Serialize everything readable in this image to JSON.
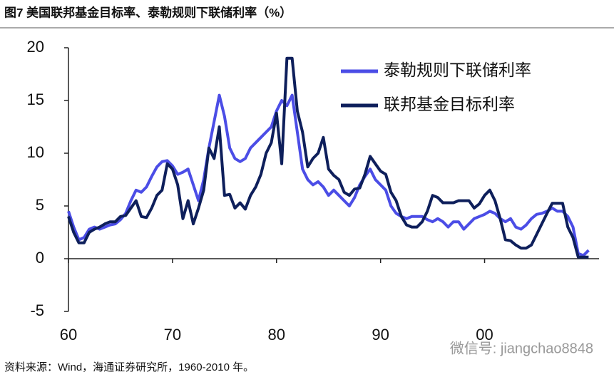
{
  "chart_data": {
    "type": "line",
    "title": "图7  美国联邦基金目标率、泰勒规则下联储利率（%）",
    "source": "资料来源：Wind，海通证券研究所，1960-2010 年。",
    "watermark": "微信号: jiangchao8848",
    "x": [
      1960,
      1960.5,
      1961,
      1961.5,
      1962,
      1962.5,
      1963,
      1963.5,
      1964,
      1964.5,
      1965,
      1965.5,
      1966,
      1966.5,
      1967,
      1967.5,
      1968,
      1968.5,
      1969,
      1969.5,
      1970,
      1970.5,
      1971,
      1971.5,
      1972,
      1972.5,
      1973,
      1973.5,
      1974,
      1974.5,
      1975,
      1975.5,
      1976,
      1976.5,
      1977,
      1977.5,
      1978,
      1978.5,
      1979,
      1979.5,
      1980,
      1980.5,
      1981,
      1981.5,
      1982,
      1982.5,
      1983,
      1983.5,
      1984,
      1984.5,
      1985,
      1985.5,
      1986,
      1986.5,
      1987,
      1987.5,
      1988,
      1988.5,
      1989,
      1989.5,
      1990,
      1990.5,
      1991,
      1991.5,
      1992,
      1992.5,
      1993,
      1993.5,
      1994,
      1994.5,
      1995,
      1995.5,
      1996,
      1996.5,
      1997,
      1997.5,
      1998,
      1998.5,
      1999,
      1999.5,
      2000,
      2000.5,
      2001,
      2001.5,
      2002,
      2002.5,
      2003,
      2003.5,
      2004,
      2004.5,
      2005,
      2005.5,
      2006,
      2006.5,
      2007,
      2007.5,
      2008,
      2008.5,
      2009,
      2009.5,
      2010
    ],
    "series": [
      {
        "name": "泰勒规则下联储利率",
        "color": "#4b4de6",
        "values": [
          4.5,
          3.0,
          1.8,
          2.0,
          2.8,
          3.0,
          2.8,
          3.0,
          3.2,
          3.3,
          3.7,
          4.3,
          5.5,
          6.5,
          6.3,
          6.8,
          7.8,
          8.7,
          9.2,
          9.3,
          8.8,
          8.0,
          8.2,
          8.5,
          7.0,
          5.5,
          7.5,
          10.5,
          13.0,
          15.5,
          13.5,
          10.5,
          9.5,
          9.2,
          9.5,
          10.5,
          11.0,
          11.5,
          12.0,
          12.5,
          14.0,
          15.0,
          14.5,
          15.5,
          12.0,
          8.5,
          7.5,
          7.0,
          7.3,
          6.8,
          6.0,
          6.5,
          6.0,
          5.5,
          5.0,
          5.8,
          7.0,
          7.8,
          8.5,
          7.5,
          7.0,
          6.5,
          5.0,
          4.3,
          4.0,
          3.8,
          4.0,
          4.0,
          4.0,
          3.7,
          3.5,
          3.8,
          3.5,
          3.0,
          3.5,
          3.5,
          2.8,
          3.3,
          3.8,
          4.0,
          4.2,
          4.5,
          4.3,
          3.8,
          3.5,
          3.8,
          3.0,
          2.8,
          3.2,
          3.8,
          4.2,
          4.3,
          4.5,
          4.8,
          4.5,
          4.5,
          4.0,
          3.0,
          0.5,
          0.3,
          0.8
        ]
      },
      {
        "name": "联邦基金目标利率",
        "color": "#0e1f5b",
        "values": [
          4.0,
          2.5,
          1.5,
          1.5,
          2.5,
          2.8,
          3.0,
          3.3,
          3.5,
          3.5,
          4.0,
          4.1,
          4.8,
          5.5,
          4.0,
          3.9,
          4.8,
          6.0,
          6.5,
          9.0,
          8.5,
          7.0,
          3.8,
          5.5,
          3.3,
          4.8,
          6.5,
          10.5,
          9.5,
          12.5,
          6.0,
          6.1,
          4.8,
          5.3,
          4.7,
          6.0,
          6.8,
          8.0,
          10.0,
          11.0,
          13.8,
          9.0,
          19.0,
          19.0,
          14.0,
          12.0,
          8.7,
          9.5,
          10.0,
          11.5,
          8.5,
          7.9,
          7.5,
          6.3,
          6.0,
          6.6,
          6.7,
          8.0,
          9.7,
          9.0,
          8.3,
          8.0,
          6.3,
          5.5,
          4.0,
          3.2,
          3.0,
          3.0,
          3.5,
          4.5,
          6.0,
          5.8,
          5.3,
          5.3,
          5.3,
          5.5,
          5.5,
          5.5,
          4.8,
          5.2,
          6.0,
          6.5,
          5.5,
          3.8,
          1.8,
          1.7,
          1.3,
          1.0,
          1.0,
          1.3,
          2.3,
          3.3,
          4.3,
          5.25,
          5.25,
          5.25,
          3.0,
          2.0,
          0.15,
          0.15,
          0.15
        ]
      }
    ],
    "xlim": [
      1960,
      2011
    ],
    "xticks": [
      {
        "value": 1960,
        "label": "60"
      },
      {
        "value": 1970,
        "label": "70"
      },
      {
        "value": 1980,
        "label": "80"
      },
      {
        "value": 1990,
        "label": "90"
      },
      {
        "value": 2000,
        "label": "00"
      }
    ],
    "ylim": [
      -5,
      20
    ],
    "yticks": [
      -5,
      0,
      5,
      10,
      15,
      20
    ],
    "legend": "top-right",
    "grid": false
  }
}
